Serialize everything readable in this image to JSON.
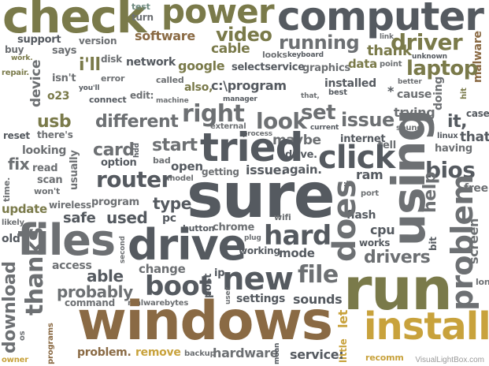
{
  "colors": {
    "brown": "#8a6a44",
    "olive": "#7a7a4a",
    "gold": "#c8a23c",
    "slate": "#555a60",
    "grey": "#6d7073",
    "teal": "#6e8a80",
    "dark": "#4a4a4a"
  },
  "watermark": "VisualLightBox.com",
  "words": {
    "check": "check",
    "test": "test",
    "turn": "turn",
    "power": "power",
    "computer": "computer",
    "support": "support",
    "version": "version",
    "software": "software",
    "video": "video",
    "running": "running",
    "driver": "driver",
    "link": "link",
    "unknown": "unknown",
    "malware": "malware",
    "buy": "buy",
    "work": "work.",
    "says": "says",
    "ill": "i'll",
    "disk": "disk",
    "network": "network",
    "google": "google",
    "cable": "cable",
    "selectservice": "selectservice",
    "looks": "looks",
    "keyboard": "keyboard",
    "thank": "thank",
    "laptop": "laptop",
    "repair": "repair.",
    "isnt": "isn't",
    "youll": "you'll",
    "error": "error",
    "graphics": "graphics",
    "data": "data",
    "point": "point",
    "device": "device",
    "called": "called",
    "installed": "installed",
    "better": "better",
    "o23": "o23",
    "connect": "connect",
    "edit": "edit:",
    "also": "also,",
    "cprogram": "c:\\program",
    "that": "that,",
    "best": "best",
    "cause": "cause",
    "doing": "doing",
    "hit": "hit",
    "machine": "machine",
    "manager": "manager",
    "star": "*",
    "usb": "usb",
    "different": "different",
    "right": "right",
    "look": "look",
    "set": "set",
    "issue": "issue",
    "trying": "trying",
    "it": "it,",
    "case": "case",
    "reset": "reset",
    "theres": "there's",
    "external": "external",
    "process": "process",
    "current": "current",
    "sound": "sound",
    "linux": "linux",
    "thatp": "that.",
    "looking": "looking",
    "maybe": "maybe",
    "internet": "internet",
    "tell": "tell",
    "having": "having",
    "card": "card",
    "hdd": "hdd",
    "start": "start",
    "tried": "tried",
    "click": "click",
    "fix": "fix",
    "read": "read",
    "option": "option",
    "bad": "bad",
    "drive": "drive.",
    "bios": "bios",
    "scan": "scan",
    "usually": "usually",
    "open": "open",
    "getting": "getting",
    "issue2": "issue.",
    "again": "again.",
    "ram": "ram",
    "free": "free",
    "wont": "won't",
    "router": "router",
    "model": "model",
    "smile": ":)",
    "port": "port",
    "time": "time.",
    "wireless": "wireless",
    "program": "program",
    "sure": "sure",
    "using": "using",
    "help": "help",
    "update": "update",
    "type": "type",
    "wifi": "wifi",
    "flash": "flash",
    "likely": "likely",
    "safe": "safe",
    "used": "used",
    "pc": "pc",
    "does": "does",
    "cpu": "cpu",
    "old": "old",
    "files": "files",
    "button": "button",
    "chrome": "chrome",
    "hard": "hard",
    "works": "works",
    "bit": "bit",
    "screen": "screen",
    "drivep": "drive",
    "plug": "plug",
    "second": "second",
    "working": "working",
    "mode": "mode",
    "drivers": "drivers",
    "problem": "problem",
    "access": "access",
    "able": "able",
    "change": "change",
    "download": "download",
    "post": "post",
    "ip": "ip",
    "new": "new",
    "file": "file",
    "long": "long",
    "thanks": "thanks",
    "probably": "probably",
    "boot": "boot",
    "user": "user",
    "settings": "settings",
    "sounds": "sounds",
    "run": "run",
    "command": "command",
    "malwarebytes": "malwarebytes",
    "os": "os",
    "windows": "windows",
    "let": "let",
    "install": "install",
    "programs": "programs",
    "little": "little",
    "problemp": "problem.",
    "remove": "remove",
    "backup": "backup",
    "hardware": "hardware",
    "mean": "mean",
    "service": "service:",
    "recomm": "recomm",
    "owner": "owner"
  }
}
